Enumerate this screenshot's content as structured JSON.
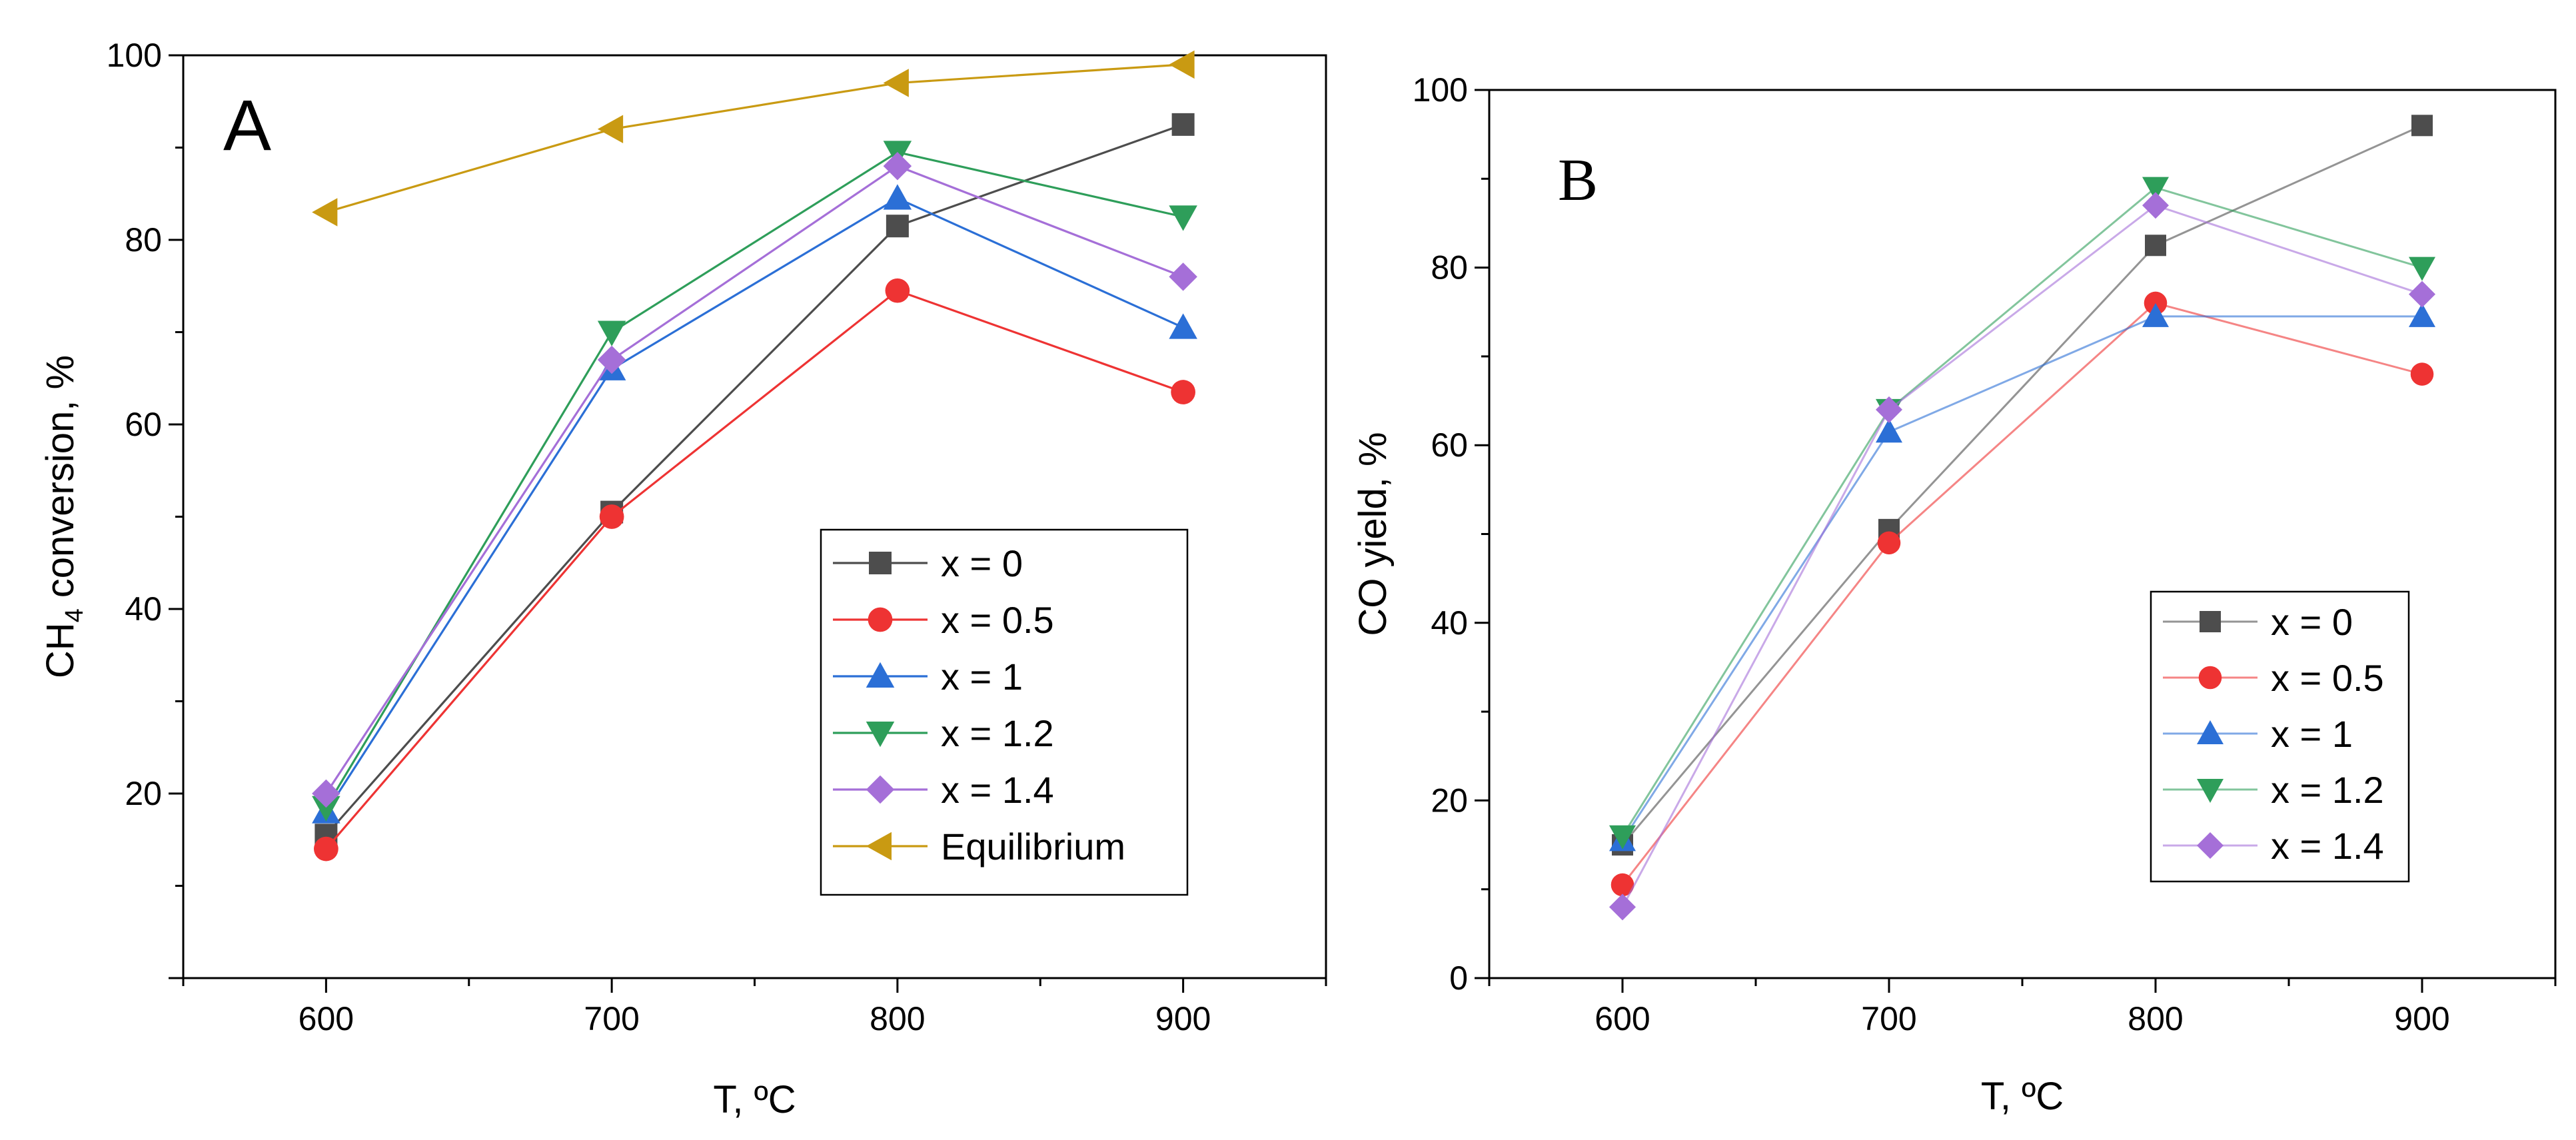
{
  "chart_data": [
    {
      "type": "line",
      "panel_label": "A",
      "xlabel": "T, ºC",
      "ylabel_main": "CH",
      "ylabel_sub": "4",
      "ylabel_rest": " conversion, %",
      "xlim": [
        550,
        950
      ],
      "ylim": [
        0,
        100
      ],
      "x_ticks": [
        600,
        700,
        800,
        900
      ],
      "y_ticks": [
        20,
        40,
        60,
        80,
        100
      ],
      "x": [
        600,
        700,
        800,
        900
      ],
      "legend_position": "bottom-right",
      "series": [
        {
          "name": "x = 0",
          "color": "#4d4d4d",
          "marker": "square",
          "values": [
            15.5,
            50.5,
            81.5,
            92.5
          ]
        },
        {
          "name": "x = 0.5",
          "color": "#ee3333",
          "marker": "circle",
          "values": [
            14,
            50,
            74.5,
            63.5
          ]
        },
        {
          "name": "x = 1",
          "color": "#2b6fd6",
          "marker": "triangle-up",
          "values": [
            18,
            66,
            84.5,
            70.5
          ]
        },
        {
          "name": "x = 1.2",
          "color": "#2e9e5a",
          "marker": "triangle-down",
          "values": [
            18.5,
            70,
            89.5,
            82.5
          ]
        },
        {
          "name": "x = 1.4",
          "color": "#a56fd8",
          "marker": "diamond",
          "values": [
            20,
            67,
            88,
            76
          ]
        },
        {
          "name": "Equilibrium",
          "color": "#c99a12",
          "marker": "triangle-left",
          "values": [
            83,
            92,
            97,
            99
          ]
        }
      ]
    },
    {
      "type": "line",
      "panel_label": "B",
      "xlabel": "T, ºC",
      "ylabel": "CO yield, %",
      "xlim": [
        550,
        950
      ],
      "ylim": [
        0,
        100
      ],
      "x_ticks": [
        600,
        700,
        800,
        900
      ],
      "y_ticks": [
        0,
        20,
        40,
        60,
        80,
        100
      ],
      "x": [
        600,
        700,
        800,
        900
      ],
      "legend_position": "bottom-right",
      "series": [
        {
          "name": "x = 0",
          "color": "#4d4d4d",
          "marker": "square",
          "values": [
            15,
            50.5,
            82.5,
            96
          ]
        },
        {
          "name": "x = 0.5",
          "color": "#ee3333",
          "marker": "circle",
          "values": [
            10.5,
            49,
            76,
            68
          ]
        },
        {
          "name": "x = 1",
          "color": "#2b6fd6",
          "marker": "triangle-up",
          "values": [
            15.5,
            61.5,
            74.5,
            74.5
          ]
        },
        {
          "name": "x = 1.2",
          "color": "#2e9e5a",
          "marker": "triangle-down",
          "values": [
            16,
            64,
            89,
            80
          ]
        },
        {
          "name": "x = 1.4",
          "color": "#a56fd8",
          "marker": "diamond",
          "values": [
            8,
            64,
            87,
            77
          ]
        }
      ]
    }
  ]
}
